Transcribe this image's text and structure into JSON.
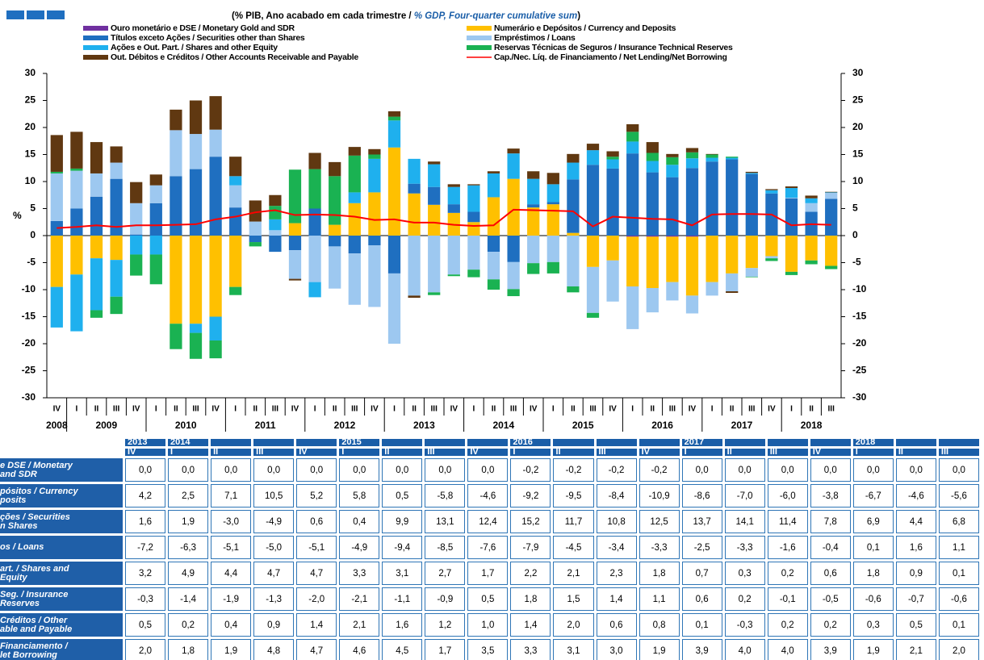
{
  "chart_data": {
    "type": "bar",
    "subtitle": [
      "(% PIB, Ano acabado em cada trimestre / ",
      "% GDP, Four-quarter cumulative sum",
      ")"
    ],
    "y_label": "%",
    "categories": [
      "IV",
      "I",
      "II",
      "III",
      "IV",
      "I",
      "II",
      "III",
      "IV",
      "I",
      "II",
      "III",
      "IV",
      "I",
      "II",
      "III",
      "IV",
      "I",
      "II",
      "III",
      "IV",
      "I",
      "II",
      "III",
      "IV",
      "I",
      "II",
      "III",
      "IV",
      "I",
      "II",
      "III",
      "IV",
      "I",
      "II",
      "III",
      "IV",
      "I",
      "II",
      "III"
    ],
    "years": [
      "2008",
      "2009",
      "2010",
      "2011",
      "2012",
      "2013",
      "2014",
      "2015",
      "2016",
      "2017",
      "2018"
    ],
    "ylim": [
      -30,
      30
    ],
    "yticks": [
      30,
      25,
      20,
      15,
      10,
      5,
      0,
      -5,
      -10,
      -15,
      -20,
      -25,
      -30
    ],
    "y2lim": [
      -30,
      30
    ],
    "y2ticks": [
      30,
      25,
      20,
      15,
      10,
      5,
      0,
      -5,
      -10,
      -15,
      -20,
      -25,
      -30
    ],
    "series": [
      {
        "name": "Ouro monetário e DSE / Monetary Gold and SDR",
        "color": "#7030a0",
        "values": [
          0,
          0,
          0,
          0,
          0,
          0,
          0,
          0,
          0,
          0,
          0,
          0,
          0,
          0,
          0,
          0,
          0,
          0,
          0,
          0,
          0,
          0,
          0,
          0,
          0,
          0,
          0,
          0,
          0,
          -0.2,
          -0.2,
          -0.2,
          -0.2,
          0,
          0,
          0,
          0,
          0,
          0,
          0
        ]
      },
      {
        "name": "Numerário e Depósitos / Currency and Deposits",
        "color": "#ffc000",
        "values": [
          -9.5,
          -7.2,
          -4.2,
          -4.5,
          0,
          0,
          -16.3,
          -16.3,
          -15.0,
          -9.5,
          0,
          0,
          2.3,
          0,
          2.0,
          6.0,
          8.0,
          16.3,
          7.8,
          5.7,
          4.2,
          2.5,
          7.1,
          10.5,
          5.2,
          5.8,
          0.5,
          -5.8,
          -4.6,
          -9.2,
          -9.5,
          -8.4,
          -10.9,
          -8.6,
          -7.0,
          -6.0,
          -3.8,
          -6.7,
          -4.6,
          -5.6
        ]
      },
      {
        "name": "Títulos exceto Ações / Securities other than Shares",
        "color": "#1f6fc0",
        "values": [
          2.7,
          5.0,
          7.2,
          10.5,
          0.2,
          6.0,
          11.0,
          12.3,
          14.6,
          5.2,
          -1.2,
          -3.0,
          -2.7,
          5.0,
          -2.0,
          -3.3,
          -1.8,
          -7.0,
          1.8,
          3.3,
          1.6,
          1.9,
          -3.0,
          -4.9,
          0.6,
          0.4,
          9.9,
          13.1,
          12.4,
          15.2,
          11.7,
          10.8,
          12.5,
          13.7,
          14.1,
          11.4,
          7.8,
          6.9,
          4.4,
          6.8
        ]
      },
      {
        "name": "Empréstimos / Loans",
        "color": "#9dc8f0",
        "values": [
          8.8,
          7.0,
          4.3,
          3.0,
          5.8,
          3.3,
          8.5,
          6.5,
          5.0,
          4.1,
          2.6,
          1.0,
          -5.3,
          -8.6,
          -7.8,
          -9.5,
          -11.4,
          -13.0,
          -11.1,
          -10.5,
          -7.2,
          -6.3,
          -5.1,
          -5.0,
          -5.1,
          -4.9,
          -9.4,
          -8.5,
          -7.6,
          -7.9,
          -4.5,
          -3.4,
          -3.3,
          -2.5,
          -3.3,
          -1.6,
          -0.4,
          0.1,
          1.6,
          1.1
        ]
      },
      {
        "name": "Ações e Out. Part. / Shares and other Equity",
        "color": "#1fb0ee",
        "values": [
          -7.5,
          -10.5,
          -9.6,
          -6.8,
          -3.5,
          -3.5,
          0,
          -1.7,
          -4.4,
          1.7,
          0,
          2.0,
          0,
          -2.8,
          0,
          2.0,
          6.2,
          5.0,
          4.6,
          4.2,
          3.2,
          4.9,
          4.4,
          4.7,
          4.7,
          3.3,
          3.1,
          2.7,
          1.7,
          2.2,
          2.1,
          2.3,
          1.8,
          0.7,
          0.3,
          0.2,
          0.6,
          1.8,
          0.9,
          0.1
        ]
      },
      {
        "name": "Reservas Técnicas de Seguros / Insurance Technical Reserves",
        "color": "#1ab252",
        "values": [
          0.3,
          0.4,
          -1.4,
          -3.2,
          -3.9,
          -5.5,
          -4.7,
          -4.8,
          -3.3,
          -1.5,
          -0.8,
          2.5,
          9.9,
          7.3,
          9.0,
          6.8,
          0.8,
          0.7,
          0,
          -0.5,
          -0.3,
          -1.4,
          -1.9,
          -1.3,
          -2.0,
          -2.1,
          -1.1,
          -0.9,
          0.5,
          1.8,
          1.5,
          1.4,
          1.1,
          0.6,
          0.2,
          -0.1,
          -0.5,
          -0.6,
          -0.7,
          -0.6
        ]
      },
      {
        "name": "Out. Débitos e Créditos / Other Accounts Receivable and Payable",
        "color": "#603811",
        "values": [
          6.8,
          6.8,
          5.8,
          3.0,
          3.9,
          2.0,
          3.8,
          6.2,
          6.2,
          3.6,
          3.9,
          2.0,
          -0.3,
          3.0,
          2.6,
          1.6,
          1.0,
          1.0,
          -0.4,
          0.5,
          0.5,
          0.2,
          0.4,
          0.9,
          1.4,
          2.1,
          1.6,
          1.2,
          1.0,
          1.4,
          2.0,
          0.6,
          0.8,
          0.1,
          -0.3,
          0.2,
          0.2,
          0.3,
          0.5,
          0.1
        ]
      },
      {
        "name": "Cap./Nec. Líq. de Financiamento / Net Lending/Net Borrowing",
        "color": "#ff0000",
        "type": "line",
        "values": [
          1.4,
          1.6,
          1.9,
          1.6,
          1.9,
          1.9,
          2.0,
          2.1,
          3.0,
          3.5,
          4.3,
          4.7,
          3.8,
          3.9,
          3.8,
          3.5,
          2.9,
          3.0,
          2.4,
          2.4,
          2.0,
          1.8,
          1.9,
          4.8,
          4.7,
          4.6,
          4.5,
          1.7,
          3.5,
          3.3,
          3.1,
          3.0,
          1.9,
          3.9,
          4.0,
          4.0,
          3.9,
          1.9,
          2.1,
          2.0
        ]
      }
    ]
  },
  "table": {
    "years": [
      "2013",
      "2014",
      null,
      null,
      null,
      "2015",
      null,
      null,
      null,
      "2016",
      null,
      null,
      null,
      "2017",
      null,
      null,
      null,
      "2018",
      null,
      null
    ],
    "quarters": [
      "IV",
      "I",
      "II",
      "III",
      "IV",
      "I",
      "II",
      "III",
      "IV",
      "I",
      "II",
      "III",
      "IV",
      "I",
      "II",
      "III",
      "IV",
      "I",
      "II",
      "III"
    ],
    "rows": [
      {
        "label": [
          "e DSE / Monetary",
          "and SDR"
        ],
        "cells": [
          "0,0",
          "0,0",
          "0,0",
          "0,0",
          "0,0",
          "0,0",
          "0,0",
          "0,0",
          "0,0",
          "-0,2",
          "-0,2",
          "-0,2",
          "-0,2",
          "0,0",
          "0,0",
          "0,0",
          "0,0",
          "0,0",
          "0,0",
          "0,0"
        ]
      },
      {
        "label": [
          "pósitos / Currency",
          "posits"
        ],
        "cells": [
          "4,2",
          "2,5",
          "7,1",
          "10,5",
          "5,2",
          "5,8",
          "0,5",
          "-5,8",
          "-4,6",
          "-9,2",
          "-9,5",
          "-8,4",
          "-10,9",
          "-8,6",
          "-7,0",
          "-6,0",
          "-3,8",
          "-6,7",
          "-4,6",
          "-5,6"
        ]
      },
      {
        "label": [
          "ções / Securities",
          "n Shares"
        ],
        "cells": [
          "1,6",
          "1,9",
          "-3,0",
          "-4,9",
          "0,6",
          "0,4",
          "9,9",
          "13,1",
          "12,4",
          "15,2",
          "11,7",
          "10,8",
          "12,5",
          "13,7",
          "14,1",
          "11,4",
          "7,8",
          "6,9",
          "4,4",
          "6,8"
        ]
      },
      {
        "label": [
          "os / Loans"
        ],
        "cells": [
          "-7,2",
          "-6,3",
          "-5,1",
          "-5,0",
          "-5,1",
          "-4,9",
          "-9,4",
          "-8,5",
          "-7,6",
          "-7,9",
          "-4,5",
          "-3,4",
          "-3,3",
          "-2,5",
          "-3,3",
          "-1,6",
          "-0,4",
          "0,1",
          "1,6",
          "1,1"
        ]
      },
      {
        "label": [
          "art. / Shares and",
          "Equity"
        ],
        "cells": [
          "3,2",
          "4,9",
          "4,4",
          "4,7",
          "4,7",
          "3,3",
          "3,1",
          "2,7",
          "1,7",
          "2,2",
          "2,1",
          "2,3",
          "1,8",
          "0,7",
          "0,3",
          "0,2",
          "0,6",
          "1,8",
          "0,9",
          "0,1"
        ]
      },
      {
        "label": [
          "Seg. / Insurance",
          "Reserves"
        ],
        "cells": [
          "-0,3",
          "-1,4",
          "-1,9",
          "-1,3",
          "-2,0",
          "-2,1",
          "-1,1",
          "-0,9",
          "0,5",
          "1,8",
          "1,5",
          "1,4",
          "1,1",
          "0,6",
          "0,2",
          "-0,1",
          "-0,5",
          "-0,6",
          "-0,7",
          "-0,6"
        ]
      },
      {
        "label": [
          "Créditos / Other",
          "able and Payable"
        ],
        "cells": [
          "0,5",
          "0,2",
          "0,4",
          "0,9",
          "1,4",
          "2,1",
          "1,6",
          "1,2",
          "1,0",
          "1,4",
          "2,0",
          "0,6",
          "0,8",
          "0,1",
          "-0,3",
          "0,2",
          "0,2",
          "0,3",
          "0,5",
          "0,1"
        ]
      },
      {
        "label": [
          "Financiamento /",
          "let Borrowing"
        ],
        "cells": [
          "2,0",
          "1,8",
          "1,9",
          "4,8",
          "4,7",
          "4,6",
          "4,5",
          "1,7",
          "3,5",
          "3,3",
          "3,1",
          "3,0",
          "1,9",
          "3,9",
          "4,0",
          "4,0",
          "3,9",
          "1,9",
          "2,1",
          "2,0"
        ]
      }
    ]
  }
}
